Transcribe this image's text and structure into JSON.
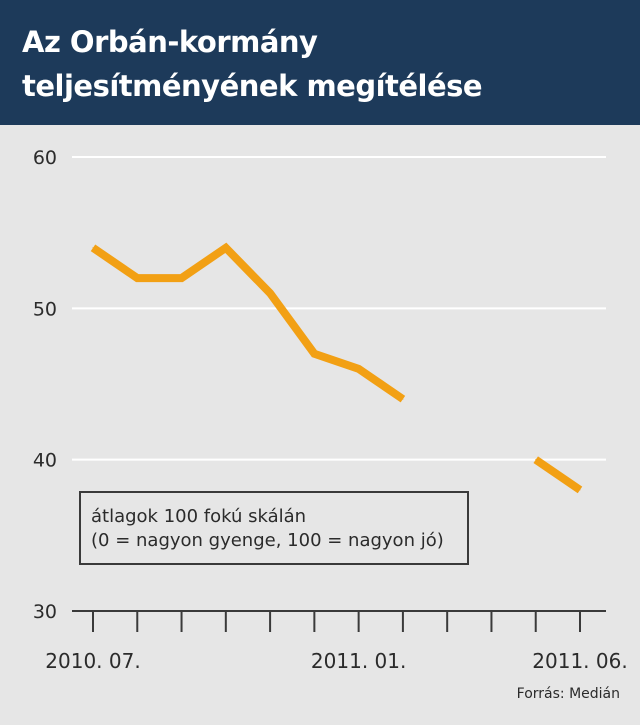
{
  "title_lines": [
    "Az Orbán-kormány",
    "teljesítményének megítélése"
  ],
  "note_lines": [
    "átlagok 100 fokú skálán",
    "(0 = nagyon gyenge, 100 = nagyon jó)"
  ],
  "source": "Forrás: Medián",
  "colors": {
    "header_bg": "#1d3a5a",
    "background": "#e6e6e6",
    "line": "#f2a014",
    "grid": "#ffffff",
    "axis": "#3a3a3a"
  },
  "chart_data": {
    "type": "line",
    "title": "Az Orbán-kormány teljesítményének megítélése",
    "subtitle": "átlagok 100 fokú skálán (0 = nagyon gyenge, 100 = nagyon jó)",
    "xlabel": "",
    "ylabel": "",
    "ylim": [
      30,
      60
    ],
    "yticks": [
      30,
      40,
      50,
      60
    ],
    "grid": true,
    "x_months": [
      "2010. 07.",
      "2010. 08.",
      "2010. 09.",
      "2010. 10.",
      "2010. 11.",
      "2010. 12.",
      "2011. 01.",
      "2011. 02.",
      "2011. 03.",
      "2011. 04.",
      "2011. 05.",
      "2011. 06."
    ],
    "x_tick_labels": [
      {
        "month": "2010. 07.",
        "label": "2010. 07."
      },
      {
        "month": "2011. 01.",
        "label": "2011. 01."
      },
      {
        "month": "2011. 06.",
        "label": "2011. 06."
      }
    ],
    "series": [
      {
        "values": [
          54,
          52,
          52,
          54,
          51,
          47,
          46,
          44,
          null,
          null,
          40,
          38
        ]
      }
    ]
  }
}
